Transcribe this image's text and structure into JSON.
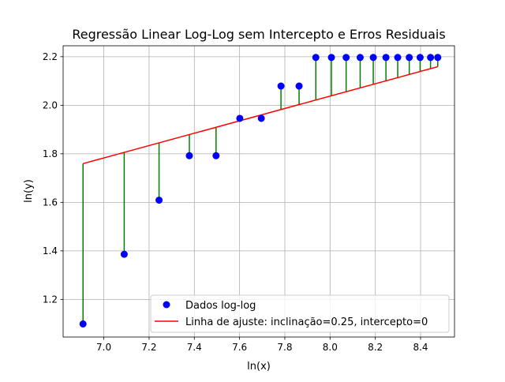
{
  "chart_data": {
    "type": "scatter",
    "title": "Regressão Linear Log-Log sem Intercepto e Erros Residuais",
    "xlabel": "ln(x)",
    "ylabel": "ln(y)",
    "xlim": [
      6.82,
      8.55
    ],
    "ylim": [
      1.045,
      2.245
    ],
    "xticks": [
      7.0,
      7.2,
      7.4,
      7.6,
      7.8,
      8.0,
      8.2,
      8.4
    ],
    "xtick_labels": [
      "7.0",
      "7.2",
      "7.4",
      "7.6",
      "7.8",
      "8.0",
      "8.2",
      "8.4"
    ],
    "yticks": [
      1.2,
      1.4,
      1.6,
      1.8,
      2.0,
      2.2
    ],
    "ytick_labels": [
      "1.2",
      "1.4",
      "1.6",
      "1.8",
      "2.0",
      "2.2"
    ],
    "grid": true,
    "legend_position": "lower-right",
    "series": [
      {
        "name": "Dados log-log",
        "kind": "scatter",
        "color": "#0000ff",
        "x": [
          6.908,
          7.09,
          7.244,
          7.378,
          7.496,
          7.601,
          7.696,
          7.783,
          7.863,
          7.937,
          8.006,
          8.071,
          8.133,
          8.191,
          8.247,
          8.299,
          8.35,
          8.398,
          8.444,
          8.476
        ],
        "y": [
          1.099,
          1.386,
          1.609,
          1.792,
          1.792,
          1.946,
          1.946,
          2.079,
          2.079,
          2.197,
          2.197,
          2.197,
          2.197,
          2.197,
          2.197,
          2.197,
          2.197,
          2.197,
          2.197,
          2.197
        ]
      },
      {
        "name": "Linha de ajuste: inclinação=0.25, intercepto=0",
        "kind": "line",
        "color": "#ff0000",
        "slope": 0.2547,
        "intercept": 0,
        "x_range": [
          6.908,
          8.476
        ]
      }
    ],
    "residuals": {
      "color": "#008000"
    }
  }
}
